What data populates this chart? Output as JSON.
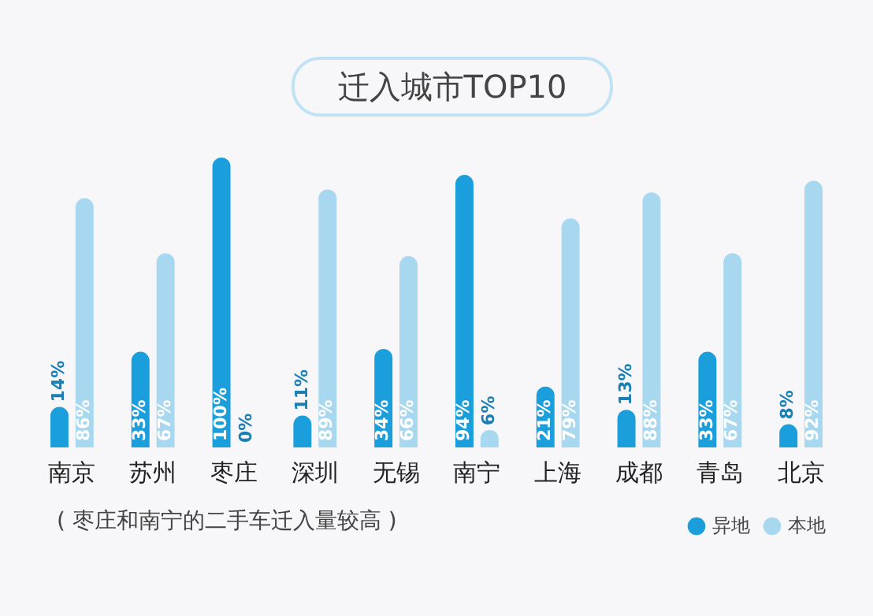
{
  "chart_data": {
    "type": "bar",
    "title": "迁入城市TOP10",
    "categories": [
      "南京",
      "苏州",
      "枣庄",
      "深圳",
      "无锡",
      "南宁",
      "上海",
      "成都",
      "青岛",
      "北京"
    ],
    "series": [
      {
        "name": "异地",
        "color": "#1a9fdc",
        "values": [
          14,
          33,
          100,
          11,
          34,
          94,
          21,
          13,
          33,
          8
        ],
        "value_labels": [
          "14%",
          "33%",
          "100%",
          "11%",
          "34%",
          "94%",
          "21%",
          "13%",
          "33%",
          "8%"
        ]
      },
      {
        "name": "本地",
        "color": "#a8d8f0",
        "values": [
          86,
          67,
          0,
          89,
          66,
          6,
          79,
          88,
          67,
          92
        ],
        "value_labels": [
          "86%",
          "67%",
          "0%",
          "89%",
          "66%",
          "6%",
          "79%",
          "88%",
          "67%",
          "92%"
        ]
      }
    ],
    "legend": "bottom right",
    "grid": false,
    "annotations": [
      "( 枣庄和南宁的二手车迁入量较高 )"
    ]
  }
}
